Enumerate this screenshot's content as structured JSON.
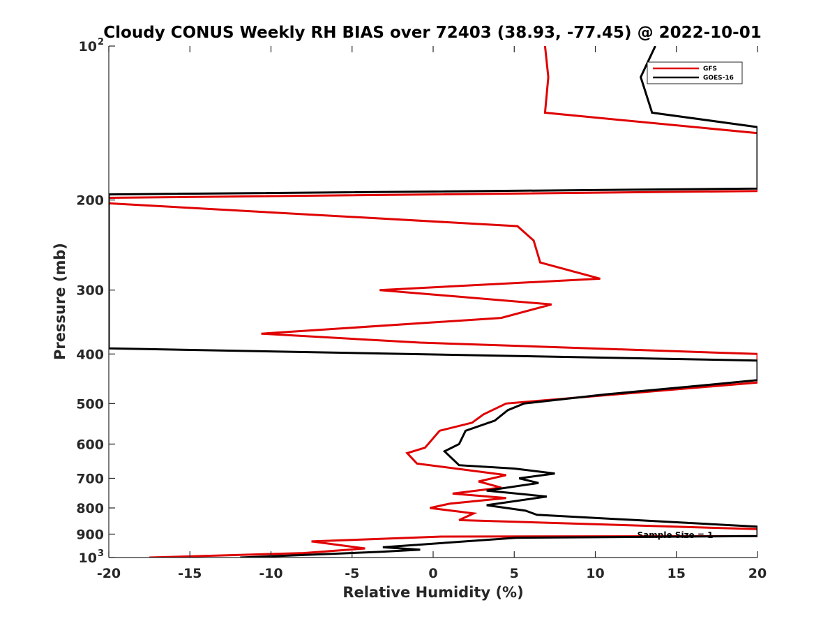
{
  "chart_data": {
    "type": "line",
    "title": "Cloudy CONUS Weekly RH BIAS over 72403 (38.93, -77.45) @ 2022-10-01",
    "xlabel": "Relative Humidity (%)",
    "ylabel": "Pressure (mb)",
    "xlim": [
      -20,
      20
    ],
    "ylim": [
      100,
      1000
    ],
    "y_scale": "log",
    "y_reversed": true,
    "grid": false,
    "legend_position": "top-right",
    "x_ticks": [
      -20,
      -15,
      -10,
      -5,
      0,
      5,
      10,
      15,
      20
    ],
    "x_tick_labels": [
      "-20",
      "-15",
      "-10",
      "-5",
      "0",
      "5",
      "10",
      "15",
      "20"
    ],
    "y_ticks": [
      100,
      200,
      300,
      400,
      500,
      600,
      700,
      800,
      900,
      1000
    ],
    "y_tick_labels": [
      {
        "base": "10",
        "exp": "2"
      },
      {
        "base": "200",
        "exp": ""
      },
      {
        "base": "300",
        "exp": ""
      },
      {
        "base": "400",
        "exp": ""
      },
      {
        "base": "500",
        "exp": ""
      },
      {
        "base": "600",
        "exp": ""
      },
      {
        "base": "700",
        "exp": ""
      },
      {
        "base": "800",
        "exp": ""
      },
      {
        "base": "900",
        "exp": ""
      },
      {
        "base": "10",
        "exp": "3"
      }
    ],
    "annotation": "Sample Size = 1",
    "series": [
      {
        "name": "GFS",
        "color": "#e00000",
        "points": [
          [
            6.9,
            100
          ],
          [
            7.1,
            115
          ],
          [
            6.9,
            135
          ],
          [
            20,
            148
          ],
          [
            20,
            192
          ],
          [
            -20,
            198
          ],
          [
            -20,
            203
          ],
          [
            5.2,
            225
          ],
          [
            6.2,
            240
          ],
          [
            6.6,
            265
          ],
          [
            10.3,
            285
          ],
          [
            -3.3,
            300
          ],
          [
            7.3,
            320
          ],
          [
            4.2,
            340
          ],
          [
            -10.6,
            365
          ],
          [
            -0.8,
            380
          ],
          [
            20,
            400
          ],
          [
            20,
            455
          ],
          [
            4.5,
            500
          ],
          [
            3.1,
            525
          ],
          [
            2.4,
            545
          ],
          [
            0.4,
            565
          ],
          [
            -0.5,
            610
          ],
          [
            -1.6,
            625
          ],
          [
            -1.0,
            655
          ],
          [
            4.5,
            690
          ],
          [
            2.8,
            710
          ],
          [
            4.2,
            730
          ],
          [
            1.2,
            750
          ],
          [
            4.5,
            765
          ],
          [
            1.0,
            785
          ],
          [
            -0.2,
            800
          ],
          [
            2.5,
            820
          ],
          [
            1.6,
            845
          ],
          [
            20,
            880
          ],
          [
            20,
            908
          ],
          [
            0.5,
            910
          ],
          [
            -7.5,
            930
          ],
          [
            -4.2,
            960
          ],
          [
            -8.0,
            980
          ],
          [
            -17.5,
            1000
          ]
        ]
      },
      {
        "name": "GOES-16",
        "color": "#000000",
        "points": [
          [
            13.7,
            100
          ],
          [
            12.8,
            115
          ],
          [
            13.5,
            135
          ],
          [
            20,
            144
          ],
          [
            20,
            190
          ],
          [
            -20,
            195
          ],
          [
            -20,
            390
          ],
          [
            20,
            412
          ],
          [
            20,
            450
          ],
          [
            15.9,
            463
          ],
          [
            10.6,
            480
          ],
          [
            5.6,
            500
          ],
          [
            4.6,
            515
          ],
          [
            3.8,
            540
          ],
          [
            2.0,
            565
          ],
          [
            1.6,
            600
          ],
          [
            0.7,
            620
          ],
          [
            1.6,
            660
          ],
          [
            5.0,
            670
          ],
          [
            7.5,
            685
          ],
          [
            5.3,
            700
          ],
          [
            6.5,
            715
          ],
          [
            3.3,
            740
          ],
          [
            7.0,
            760
          ],
          [
            3.3,
            790
          ],
          [
            5.7,
            810
          ],
          [
            6.4,
            825
          ],
          [
            20,
            870
          ],
          [
            20,
            908
          ],
          [
            5.1,
            915
          ],
          [
            -3.1,
            955
          ],
          [
            -0.8,
            965
          ],
          [
            -3.3,
            975
          ],
          [
            -11.9,
            1000
          ]
        ]
      }
    ]
  }
}
